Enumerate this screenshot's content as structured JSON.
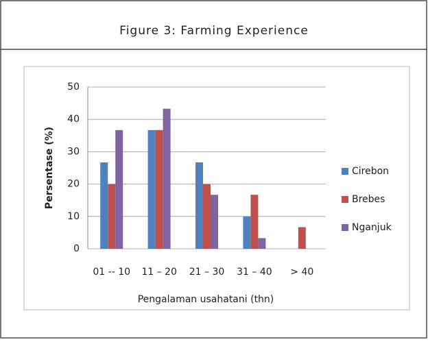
{
  "header": {
    "title": "Figure 3: Farming Experience"
  },
  "chart_data": {
    "type": "bar",
    "xlabel": "Pengalaman usahatani (thn)",
    "ylabel": "Persentase (%)",
    "categories": [
      "01 -- 10",
      "11 – 20",
      "21 – 30",
      "31 – 40",
      "> 40"
    ],
    "series": [
      {
        "name": "Cirebon",
        "color": "#4f81bd",
        "values": [
          26.7,
          36.7,
          26.7,
          10,
          0
        ]
      },
      {
        "name": "Brebes",
        "color": "#c0504d",
        "values": [
          20,
          36.7,
          20,
          16.7,
          6.7
        ]
      },
      {
        "name": "Nganjuk",
        "color": "#8064a2",
        "values": [
          36.7,
          43.3,
          16.7,
          3.3,
          0
        ]
      }
    ],
    "ylim": [
      0,
      50
    ],
    "yticks": [
      0,
      10,
      20,
      30,
      40,
      50
    ],
    "grid": true,
    "legend": "right"
  }
}
